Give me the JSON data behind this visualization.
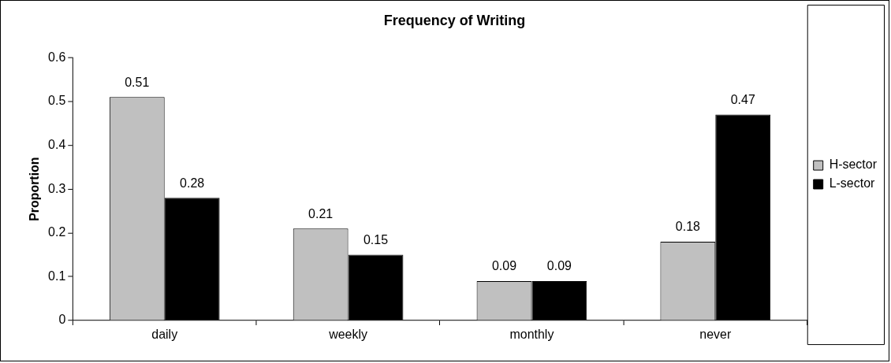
{
  "chart_data": {
    "type": "bar",
    "title": "Frequency of Writing",
    "ylabel": "Proportion",
    "categories": [
      "daily",
      "weekly",
      "monthly",
      "never"
    ],
    "series": [
      {
        "name": "H-sector",
        "color": "#c0c0c0",
        "values": [
          0.51,
          0.21,
          0.09,
          0.18
        ]
      },
      {
        "name": "L-sector",
        "color": "#000000",
        "values": [
          0.28,
          0.15,
          0.09,
          0.47
        ]
      }
    ],
    "ylim": [
      0,
      0.6
    ],
    "yticks": [
      0,
      0.1,
      0.2,
      0.3,
      0.4,
      0.5,
      0.6
    ],
    "grid": false,
    "legend": "right",
    "data_labels": true
  }
}
